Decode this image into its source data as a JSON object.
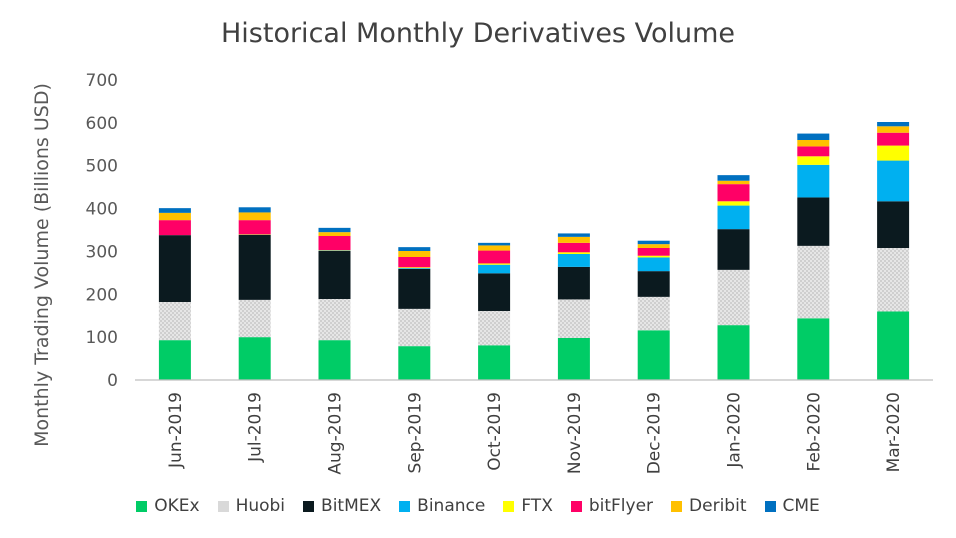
{
  "chart_data": {
    "type": "bar",
    "stacked": true,
    "title": "Historical Monthly Derivatives Volume",
    "xlabel": "",
    "ylabel": "Monthly Trading Volume (Billions USD)",
    "ylim": [
      0,
      700
    ],
    "yticks": [
      0,
      100,
      200,
      300,
      400,
      500,
      600,
      700
    ],
    "grid": false,
    "legend_position": "bottom",
    "categories": [
      "Jun-2019",
      "Jul-2019",
      "Aug-2019",
      "Sep-2019",
      "Oct-2019",
      "Nov-2019",
      "Dec-2019",
      "Jan-2020",
      "Feb-2020",
      "Mar-2020"
    ],
    "series": [
      {
        "name": "OKEx",
        "color": "#00CC66",
        "pattern": "solid",
        "values": [
          93,
          100,
          93,
          79,
          81,
          98,
          116,
          128,
          144,
          160
        ]
      },
      {
        "name": "Huobi",
        "color": "#D9D9D9",
        "pattern": "dotted",
        "values": [
          89,
          87,
          96,
          87,
          80,
          90,
          78,
          129,
          169,
          148
        ]
      },
      {
        "name": "BitMEX",
        "color": "#0B1A1F",
        "pattern": "solid",
        "values": [
          156,
          152,
          112,
          93,
          88,
          76,
          60,
          95,
          113,
          109
        ]
      },
      {
        "name": "Binance",
        "color": "#00B0F0",
        "pattern": "solid",
        "values": [
          0,
          0,
          1,
          2,
          20,
          30,
          32,
          55,
          76,
          95
        ]
      },
      {
        "name": "FTX",
        "color": "#FFFF00",
        "pattern": "solid",
        "values": [
          0,
          1,
          1,
          2,
          3,
          4,
          4,
          10,
          20,
          35
        ]
      },
      {
        "name": "bitFlyer",
        "color": "#FF0066",
        "pattern": "solid",
        "values": [
          35,
          33,
          33,
          24,
          30,
          22,
          18,
          40,
          23,
          30
        ]
      },
      {
        "name": "Deribit",
        "color": "#FFC000",
        "pattern": "solid",
        "values": [
          17,
          18,
          9,
          14,
          12,
          14,
          9,
          8,
          15,
          15
        ]
      },
      {
        "name": "CME",
        "color": "#0070C0",
        "pattern": "solid",
        "values": [
          11,
          12,
          10,
          9,
          6,
          8,
          8,
          13,
          15,
          10
        ]
      }
    ]
  }
}
